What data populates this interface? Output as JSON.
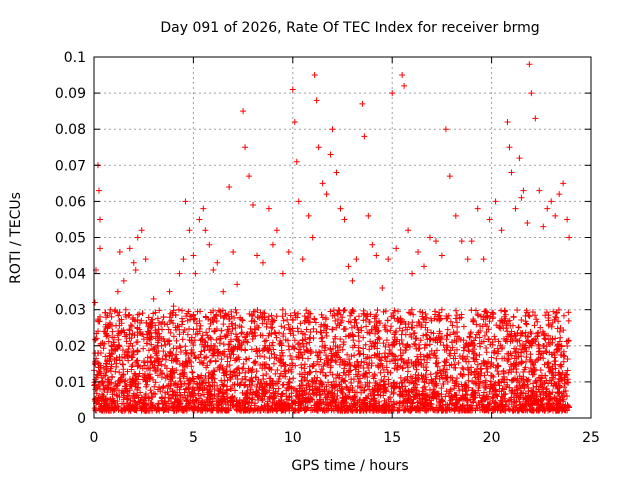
{
  "chart_data": {
    "type": "scatter",
    "title": "Day 091 of 2026, Rate Of TEC Index for receiver brmg",
    "xlabel": "GPS time / hours",
    "ylabel": "ROTI / TECUs",
    "xlim": [
      0,
      25
    ],
    "ylim": [
      0,
      0.1
    ],
    "x_ticks": [
      0,
      5,
      10,
      15,
      20,
      25
    ],
    "x_tick_labels": [
      "0",
      "5",
      "10",
      "15",
      "20",
      "25"
    ],
    "y_ticks": [
      0,
      0.01,
      0.02,
      0.03,
      0.04,
      0.05,
      0.06,
      0.07,
      0.08,
      0.09,
      0.1
    ],
    "y_tick_labels": [
      "0",
      "0.01",
      "0.02",
      "0.03",
      "0.04",
      "0.05",
      "0.06",
      "0.07",
      "0.08",
      "0.09",
      "0.1"
    ],
    "grid": true,
    "marker": "plus",
    "color": "#ff0000",
    "series": [
      {
        "x": [
          0.05,
          0.1,
          0.15,
          0.2,
          0.25,
          0.3,
          0.3,
          0.3,
          0.35,
          0.5,
          0.6,
          0.8,
          1.0,
          1.2,
          1.3,
          1.5,
          1.6,
          1.8,
          2.0,
          2.1,
          2.2,
          2.4,
          2.6,
          2.8,
          3.0,
          3.2,
          3.5,
          3.8,
          4.0,
          4.3,
          4.5,
          4.6,
          4.8,
          5.0,
          5.1,
          5.3,
          5.5,
          5.6,
          5.8,
          6.0,
          6.2,
          6.5,
          6.8,
          7.0,
          7.2,
          7.5,
          7.6,
          7.8,
          8.0,
          8.2,
          8.5,
          8.8,
          9.0,
          9.2,
          9.5,
          9.8,
          10.0,
          10.1,
          10.2,
          10.3,
          10.5,
          10.8,
          11.0,
          11.1,
          11.2,
          11.3,
          11.5,
          11.7,
          11.9,
          12.0,
          12.2,
          12.4,
          12.6,
          12.8,
          13.0,
          13.2,
          13.5,
          13.6,
          13.8,
          14.0,
          14.2,
          14.5,
          14.8,
          15.0,
          15.2,
          15.5,
          15.6,
          15.8,
          16.0,
          16.3,
          16.6,
          16.9,
          17.2,
          17.5,
          17.7,
          17.9,
          18.2,
          18.5,
          18.8,
          19.0,
          19.3,
          19.6,
          19.9,
          20.2,
          20.5,
          20.8,
          20.9,
          21.0,
          21.2,
          21.4,
          21.5,
          21.6,
          21.8,
          21.9,
          22.0,
          22.2,
          22.4,
          22.6,
          22.8,
          23.0,
          23.2,
          23.4,
          23.6,
          23.8,
          23.9
        ],
        "y": [
          0.032,
          0.041,
          0.012,
          0.07,
          0.063,
          0.055,
          0.047,
          0.028,
          0.018,
          0.024,
          0.015,
          0.029,
          0.021,
          0.035,
          0.046,
          0.038,
          0.03,
          0.047,
          0.043,
          0.041,
          0.05,
          0.052,
          0.044,
          0.026,
          0.033,
          0.02,
          0.028,
          0.035,
          0.031,
          0.04,
          0.044,
          0.06,
          0.052,
          0.045,
          0.04,
          0.055,
          0.058,
          0.052,
          0.048,
          0.041,
          0.043,
          0.035,
          0.064,
          0.046,
          0.037,
          0.085,
          0.075,
          0.067,
          0.059,
          0.045,
          0.043,
          0.058,
          0.048,
          0.052,
          0.04,
          0.046,
          0.091,
          0.082,
          0.071,
          0.06,
          0.044,
          0.056,
          0.05,
          0.095,
          0.088,
          0.075,
          0.065,
          0.062,
          0.073,
          0.08,
          0.068,
          0.058,
          0.055,
          0.042,
          0.038,
          0.044,
          0.087,
          0.078,
          0.056,
          0.048,
          0.045,
          0.036,
          0.044,
          0.09,
          0.047,
          0.095,
          0.092,
          0.052,
          0.04,
          0.046,
          0.042,
          0.05,
          0.049,
          0.045,
          0.08,
          0.067,
          0.056,
          0.049,
          0.044,
          0.049,
          0.058,
          0.044,
          0.055,
          0.06,
          0.052,
          0.082,
          0.075,
          0.068,
          0.058,
          0.072,
          0.061,
          0.063,
          0.054,
          0.098,
          0.09,
          0.083,
          0.063,
          0.053,
          0.058,
          0.06,
          0.056,
          0.062,
          0.065,
          0.055,
          0.05
        ],
        "band": {
          "description": "dense cloud of points covering the full time range",
          "x_range": [
            0.0,
            23.9
          ],
          "y_range": [
            0.002,
            0.03
          ]
        }
      }
    ]
  }
}
